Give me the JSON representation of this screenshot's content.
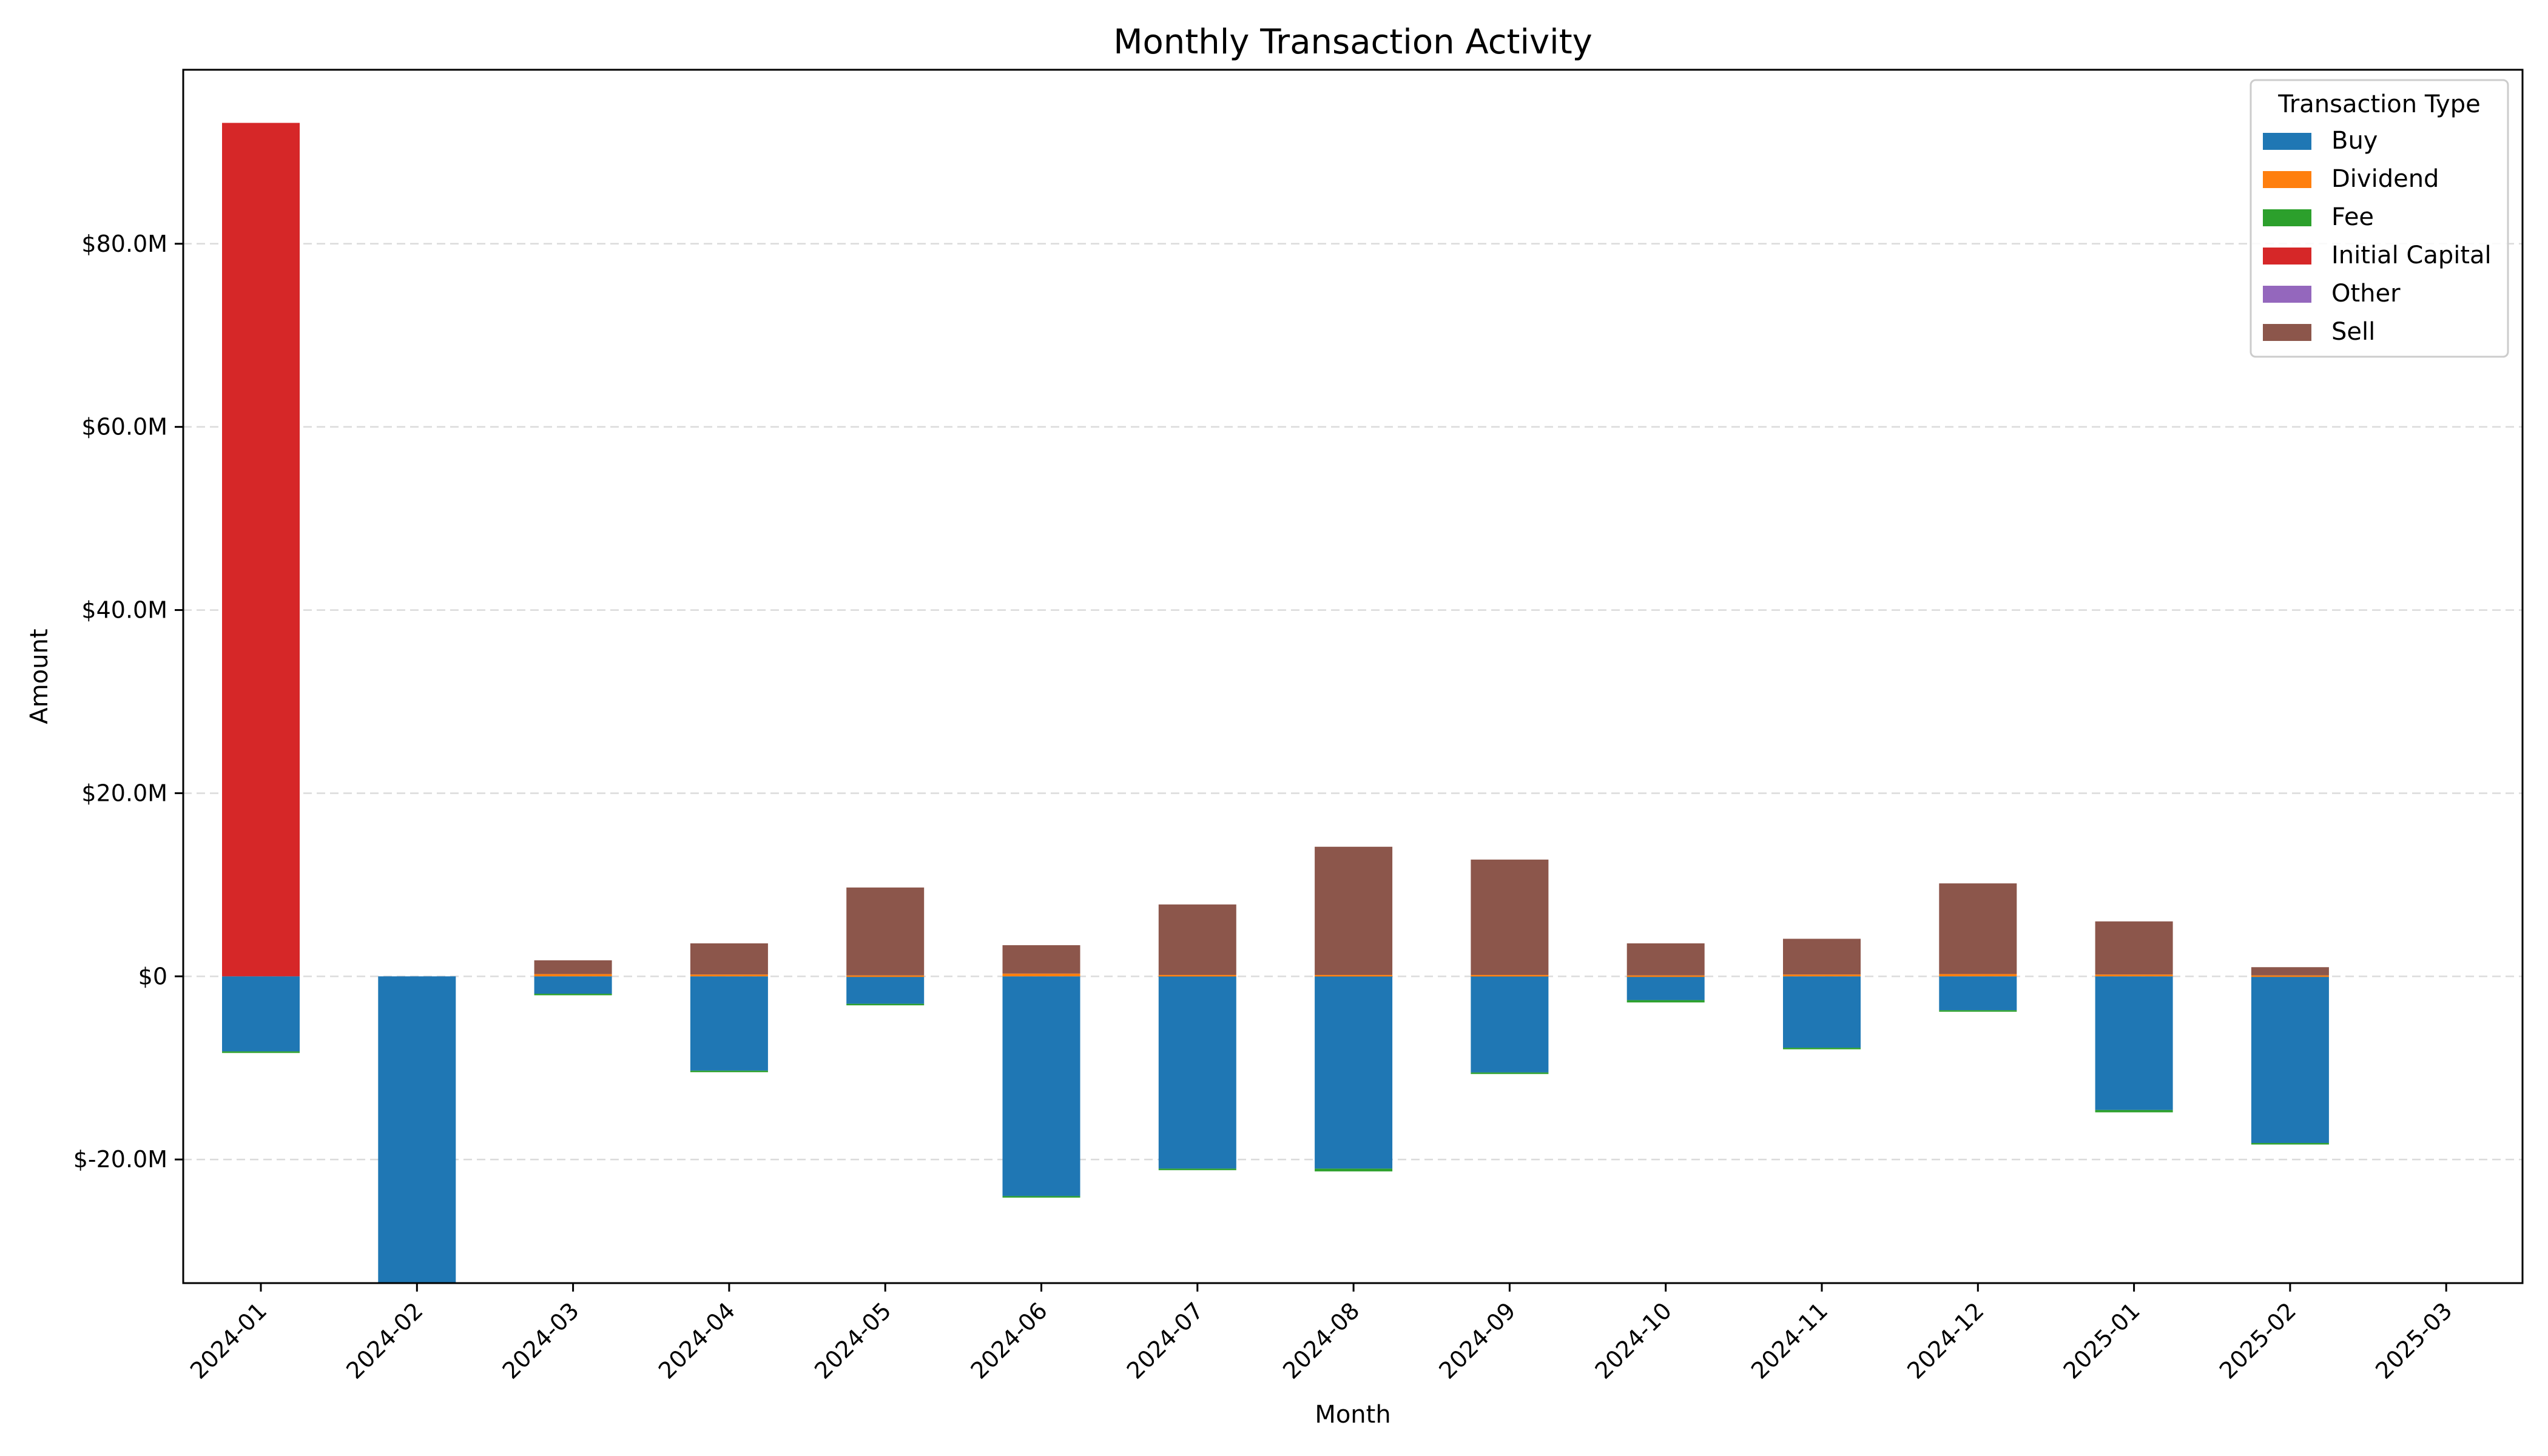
{
  "chart_data": {
    "type": "bar",
    "stacked": true,
    "title": "Monthly Transaction Activity",
    "xlabel": "Month",
    "ylabel": "Amount",
    "ylim": [
      -33.5,
      99.0
    ],
    "y_ticks": [
      {
        "value": 80,
        "label": "$80.0M"
      },
      {
        "value": 60,
        "label": "$60.0M"
      },
      {
        "value": 40,
        "label": "$40.0M"
      },
      {
        "value": 20,
        "label": "$20.0M"
      },
      {
        "value": 0,
        "label": "$0"
      },
      {
        "value": -20,
        "label": "$-20.0M"
      }
    ],
    "grid": "horizontal dashed",
    "legend_title": "Transaction Type",
    "legend_position": "top-right",
    "categories": [
      "2024-01",
      "2024-02",
      "2024-03",
      "2024-04",
      "2024-05",
      "2024-06",
      "2024-07",
      "2024-08",
      "2024-09",
      "2024-10",
      "2024-11",
      "2024-12",
      "2025-01",
      "2025-02",
      "2025-03"
    ],
    "series": [
      {
        "name": "Buy",
        "color": "#1f77b4",
        "values": [
          -8.2,
          -33.5,
          -1.9,
          -10.3,
          -3.0,
          -24.0,
          -21.0,
          -21.0,
          -10.5,
          -2.6,
          -7.8,
          -3.7,
          -14.6,
          -18.2,
          0
        ]
      },
      {
        "name": "Dividend",
        "color": "#ff7f0e",
        "values": [
          0,
          0,
          0.25,
          0.2,
          0.1,
          0.3,
          0.15,
          0.15,
          0.15,
          0.1,
          0.2,
          0.25,
          0.2,
          0.1,
          0
        ]
      },
      {
        "name": "Fee",
        "color": "#2ca02c",
        "values": [
          -0.05,
          0,
          -0.05,
          -0.05,
          -0.05,
          -0.1,
          -0.1,
          -0.3,
          -0.05,
          -0.25,
          -0.05,
          -0.05,
          -0.25,
          -0.05,
          0
        ]
      },
      {
        "name": "Initial Capital",
        "color": "#d62728",
        "values": [
          93.2,
          0,
          0,
          0,
          0,
          0,
          0,
          0,
          0,
          0,
          0,
          0,
          0,
          0,
          0
        ]
      },
      {
        "name": "Other",
        "color": "#9467bd",
        "values": [
          0,
          0,
          0,
          0,
          0,
          0,
          0,
          0,
          0,
          0,
          0,
          0,
          0,
          0,
          0
        ]
      },
      {
        "name": "Sell",
        "color": "#8c564b",
        "values": [
          0,
          0,
          1.5,
          3.4,
          9.6,
          3.1,
          7.7,
          14.0,
          12.6,
          3.5,
          3.9,
          9.9,
          5.8,
          0.9,
          0
        ]
      }
    ]
  }
}
